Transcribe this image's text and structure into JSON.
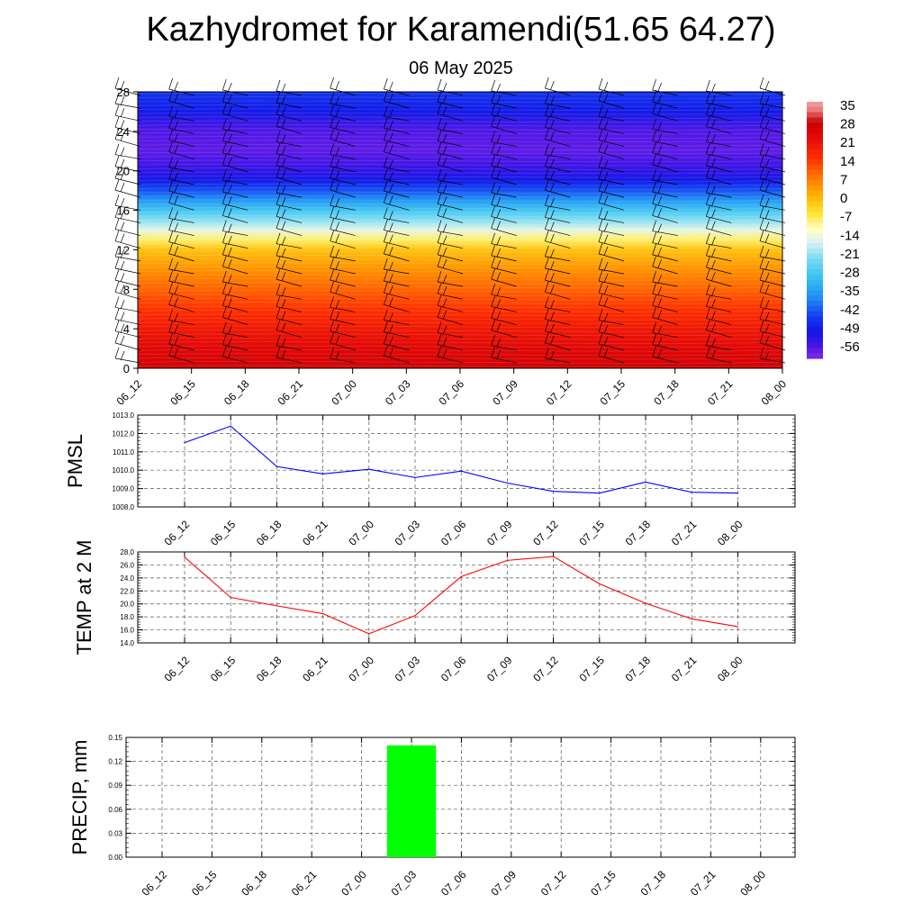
{
  "header": {
    "title": "Kazhydromet for Karamendi(51.65 64.27)",
    "date": "06 May 2025"
  },
  "colors": {
    "pmsl_line": "#0000ff",
    "temp_line": "#ff0000",
    "precip_bar": "#00ff00",
    "grid": "#555555"
  },
  "chart_data": [
    {
      "type": "heatmap",
      "name": "vertical-profile",
      "x_ticks": [
        "06_12",
        "06_15",
        "06_18",
        "06_21",
        "07_00",
        "07_03",
        "07_06",
        "07_09",
        "07_12",
        "07_15",
        "07_18",
        "07_21",
        "08_00"
      ],
      "y_ticks": [
        "0",
        "4",
        "8",
        "12",
        "16",
        "20",
        "24",
        "28"
      ],
      "ylim": [
        0,
        28
      ],
      "colorbar_labels": [
        "35",
        "28",
        "21",
        "14",
        "7",
        "0",
        "-7",
        "-14",
        "-21",
        "-28",
        "-35",
        "-42",
        "-49",
        "-56"
      ],
      "colorbar_range": [
        -60,
        38
      ],
      "temperature_profile": [
        [
          0,
          28
        ],
        [
          2,
          25
        ],
        [
          4,
          21
        ],
        [
          6,
          16
        ],
        [
          8,
          11
        ],
        [
          10,
          6
        ],
        [
          12,
          0
        ],
        [
          13,
          -7
        ],
        [
          14,
          -14
        ],
        [
          15,
          -21
        ],
        [
          16,
          -28
        ],
        [
          17,
          -35
        ],
        [
          18,
          -42
        ],
        [
          19,
          -49
        ],
        [
          20,
          -53
        ],
        [
          22,
          -57
        ],
        [
          24,
          -56
        ],
        [
          26,
          -49
        ],
        [
          28,
          -45
        ]
      ]
    },
    {
      "type": "line",
      "name": "pmsl",
      "ylabel": "PMSL",
      "x": [
        "06_12",
        "06_15",
        "06_18",
        "06_21",
        "07_00",
        "07_03",
        "07_06",
        "07_09",
        "07_12",
        "07_15",
        "07_18",
        "07_21",
        "08_00"
      ],
      "values": [
        1011.5,
        1012.4,
        1010.2,
        1009.8,
        1010.05,
        1009.6,
        1009.95,
        1009.3,
        1008.85,
        1008.75,
        1009.35,
        1008.8,
        1008.75
      ],
      "ylim": [
        1008.0,
        1013.0
      ],
      "y_ticks": [
        "1013.0",
        "1012.0",
        "1011.0",
        "1010.0",
        "1009.0",
        "1008.0"
      ],
      "grid": true
    },
    {
      "type": "line",
      "name": "temp-2m",
      "ylabel": "TEMP at 2 M",
      "x": [
        "06_12",
        "06_15",
        "06_18",
        "06_21",
        "07_00",
        "07_03",
        "07_06",
        "07_09",
        "07_12",
        "07_15",
        "07_18",
        "07_21",
        "08_00"
      ],
      "values": [
        27.2,
        21.0,
        19.7,
        18.5,
        15.4,
        18.2,
        24.2,
        26.7,
        27.3,
        23.1,
        20.1,
        17.7,
        16.5
      ],
      "ylim": [
        14.0,
        28.0
      ],
      "y_ticks": [
        "28.0",
        "26.0",
        "24.0",
        "22.0",
        "20.0",
        "18.0",
        "16.0",
        "14.0"
      ],
      "grid": true
    },
    {
      "type": "bar",
      "name": "precip",
      "ylabel": "PRECIP, mm",
      "x": [
        "06_12",
        "06_15",
        "06_18",
        "06_21",
        "07_00",
        "07_03",
        "07_06",
        "07_09",
        "07_12",
        "07_15",
        "07_18",
        "07_21",
        "08_00"
      ],
      "values": [
        0,
        0,
        0,
        0,
        0,
        0.14,
        0,
        0,
        0,
        0,
        0,
        0,
        0
      ],
      "ylim": [
        0,
        0.15
      ],
      "y_ticks": [
        "0.15",
        "0.12",
        "0.09",
        "0.06",
        "0.03",
        "0.00"
      ],
      "grid": true
    }
  ]
}
